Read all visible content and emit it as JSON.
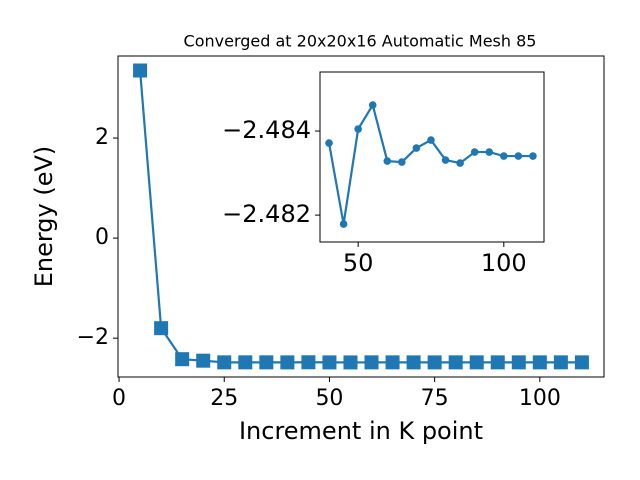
{
  "chart_data": [
    {
      "type": "line",
      "title": "Converged at 20x20x16 Automatic Mesh 85",
      "xlabel": "Increment in K point",
      "ylabel": "Energy (eV)",
      "x": [
        5,
        10,
        15,
        20,
        25,
        30,
        35,
        40,
        45,
        50,
        55,
        60,
        65,
        70,
        75,
        80,
        85,
        90,
        95,
        100,
        105,
        110
      ],
      "values": [
        3.35,
        -1.8,
        -2.42,
        -2.45,
        -2.483,
        -2.483,
        -2.483,
        -2.483714,
        -2.481786,
        -2.484048,
        -2.484619,
        -2.483286,
        -2.483262,
        -2.483595,
        -2.483786,
        -2.48331,
        -2.483238,
        -2.4835,
        -2.4835,
        -2.483405,
        -2.483405,
        -2.483405
      ],
      "color": "#1f77b4",
      "marker": "square",
      "xlim": [
        -0.25,
        115.25
      ],
      "ylim": [
        -2.776,
        3.64
      ],
      "xticks": [
        0,
        25,
        50,
        75,
        100
      ],
      "yticks": [
        {
          "value": -2,
          "label": "−2"
        },
        0,
        2
      ]
    },
    {
      "type": "line",
      "x": [
        40,
        45,
        50,
        55,
        60,
        65,
        70,
        75,
        80,
        85,
        90,
        95,
        100,
        105,
        110
      ],
      "values": [
        -2.483714,
        -2.481786,
        -2.484048,
        -2.484619,
        -2.483286,
        -2.483262,
        -2.483595,
        -2.483786,
        -2.48331,
        -2.483238,
        -2.4835,
        -2.4835,
        -2.483405,
        -2.483405,
        -2.483405
      ],
      "color": "#1f77b4",
      "marker": "circle",
      "xlim": [
        36.9,
        113.8
      ],
      "ylim": [
        -2.48136,
        -2.485405
      ],
      "xticks": [
        50,
        100
      ],
      "yticks": [
        {
          "value": -2.484,
          "label": "−2.484"
        },
        {
          "value": -2.482,
          "label": "−2.482"
        }
      ]
    }
  ]
}
